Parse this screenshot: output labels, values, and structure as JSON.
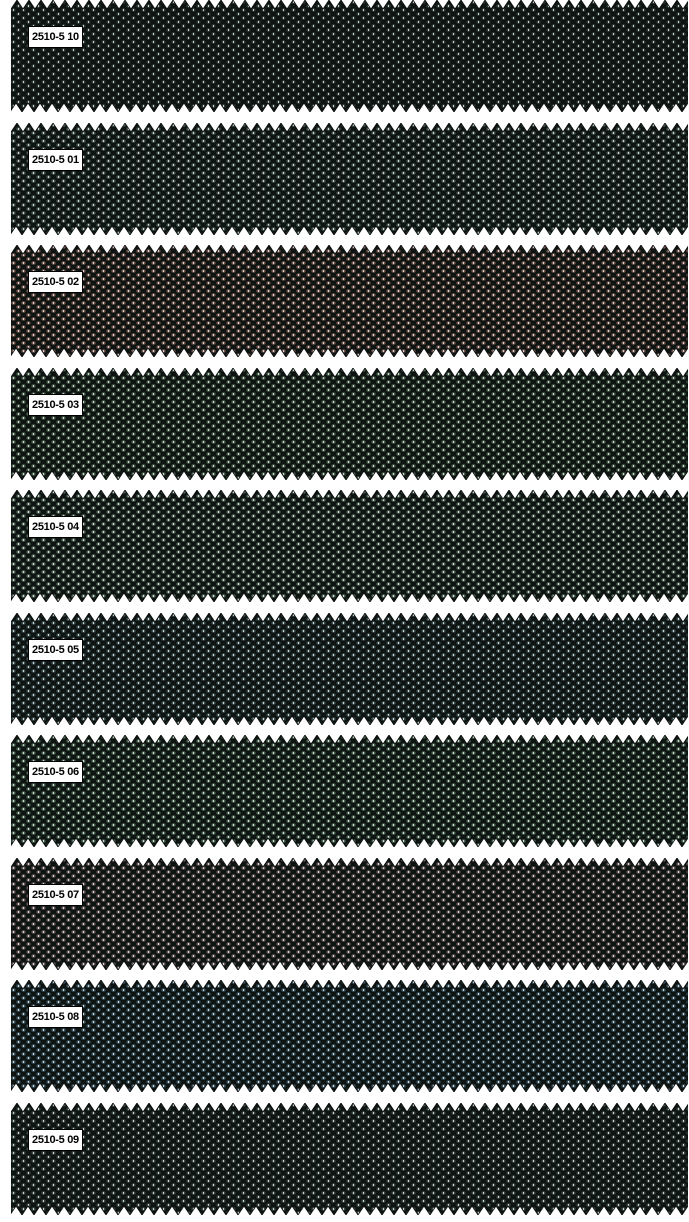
{
  "swatches": [
    {
      "code": "2510-5 10",
      "color": "#2e3b37"
    },
    {
      "code": "2510-5 01",
      "color": "#4a5955"
    },
    {
      "code": "2510-5 02",
      "color": "#7a5650"
    },
    {
      "code": "2510-5 03",
      "color": "#4c6350"
    },
    {
      "code": "2510-5 04",
      "color": "#566a5c"
    },
    {
      "code": "2510-5 05",
      "color": "#3f5256"
    },
    {
      "code": "2510-5 06",
      "color": "#4e6955"
    },
    {
      "code": "2510-5 07",
      "color": "#6a5a5c"
    },
    {
      "code": "2510-5 08",
      "color": "#3f5a6a"
    },
    {
      "code": "2510-5 09",
      "color": "#3b4a42"
    }
  ]
}
